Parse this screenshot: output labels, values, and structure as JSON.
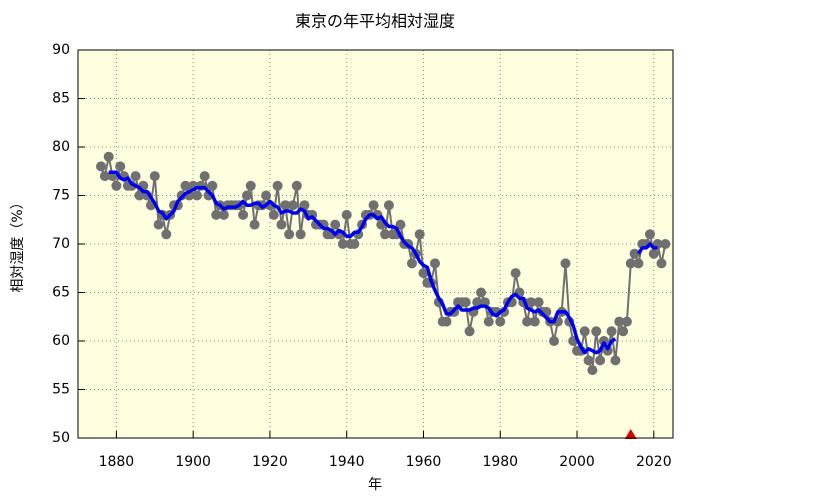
{
  "chart_data": {
    "type": "line",
    "title": "東京の年平均相対湿度",
    "xlabel": "年",
    "ylabel": "相対湿度（%）",
    "x": [
      1876,
      1877,
      1878,
      1879,
      1880,
      1881,
      1882,
      1883,
      1884,
      1885,
      1886,
      1887,
      1888,
      1889,
      1890,
      1891,
      1892,
      1893,
      1894,
      1895,
      1896,
      1897,
      1898,
      1899,
      1900,
      1901,
      1902,
      1903,
      1904,
      1905,
      1906,
      1907,
      1908,
      1909,
      1910,
      1911,
      1912,
      1913,
      1914,
      1915,
      1916,
      1917,
      1918,
      1919,
      1920,
      1921,
      1922,
      1923,
      1924,
      1925,
      1926,
      1927,
      1928,
      1929,
      1930,
      1931,
      1932,
      1933,
      1934,
      1935,
      1936,
      1937,
      1938,
      1939,
      1940,
      1941,
      1942,
      1943,
      1944,
      1945,
      1946,
      1947,
      1948,
      1949,
      1950,
      1951,
      1952,
      1953,
      1954,
      1955,
      1956,
      1957,
      1958,
      1959,
      1960,
      1961,
      1962,
      1963,
      1964,
      1965,
      1966,
      1967,
      1968,
      1969,
      1970,
      1971,
      1972,
      1973,
      1974,
      1975,
      1976,
      1977,
      1978,
      1979,
      1980,
      1981,
      1982,
      1983,
      1984,
      1985,
      1986,
      1987,
      1988,
      1989,
      1990,
      1991,
      1992,
      1993,
      1994,
      1995,
      1996,
      1997,
      1998,
      1999,
      2000,
      2001,
      2002,
      2003,
      2004,
      2005,
      2006,
      2007,
      2008,
      2009,
      2010,
      2011,
      2012,
      2013,
      2014,
      2015,
      2016,
      2017,
      2018,
      2019,
      2020,
      2021,
      2022,
      2023
    ],
    "series": [
      {
        "color": "#707070",
        "markers": true,
        "line_width": 2,
        "values": [
          78,
          77,
          79,
          77,
          76,
          78,
          77,
          76,
          76,
          77,
          75,
          76,
          75,
          74,
          77,
          72,
          73,
          71,
          73,
          74,
          74,
          75,
          76,
          75,
          76,
          75,
          76,
          77,
          75,
          76,
          73,
          74,
          73,
          74,
          74,
          74,
          74,
          73,
          75,
          76,
          72,
          74,
          74,
          75,
          74,
          73,
          76,
          72,
          74,
          71,
          74,
          76,
          71,
          74,
          73,
          73,
          72,
          72,
          72,
          71,
          71,
          72,
          71,
          70,
          73,
          70,
          70,
          71,
          72,
          73,
          73,
          74,
          73,
          72,
          71,
          74,
          71,
          71,
          72,
          70,
          70,
          68,
          69,
          71,
          67,
          66,
          66,
          68,
          64,
          62,
          62,
          63,
          63,
          64,
          64,
          64,
          61,
          63,
          64,
          65,
          64,
          62,
          63,
          63,
          62,
          63,
          64,
          64,
          67,
          65,
          64,
          62,
          64,
          62,
          64,
          63,
          63,
          62,
          60,
          62,
          63,
          68,
          62,
          60,
          59,
          59,
          61,
          58,
          57,
          61,
          58,
          60,
          59,
          61,
          58,
          62,
          61,
          62,
          68,
          69,
          68,
          70,
          70,
          71,
          69,
          70,
          68,
          70
        ]
      },
      {
        "color": "#0000ee",
        "markers": false,
        "line_width": 3.5,
        "values": [
          null,
          null,
          77.4,
          77.4,
          77.4,
          76.8,
          76.6,
          76.8,
          76.2,
          76.0,
          75.8,
          75.4,
          75.4,
          74.8,
          74.2,
          73.4,
          73.2,
          72.6,
          73.0,
          73.4,
          74.4,
          74.8,
          75.2,
          75.4,
          75.6,
          75.8,
          75.8,
          75.8,
          75.4,
          75.0,
          74.2,
          74.0,
          73.6,
          73.8,
          73.8,
          73.8,
          74.0,
          74.4,
          74.0,
          74.0,
          74.2,
          74.2,
          73.8,
          74.0,
          74.4,
          74.0,
          73.8,
          73.2,
          73.4,
          73.4,
          73.2,
          73.2,
          73.6,
          73.4,
          72.6,
          72.8,
          72.4,
          72.0,
          71.6,
          71.6,
          71.4,
          71.0,
          71.4,
          71.2,
          70.8,
          70.8,
          71.2,
          71.2,
          71.8,
          72.6,
          73.0,
          73.0,
          72.6,
          72.8,
          72.2,
          71.8,
          71.8,
          71.6,
          70.8,
          70.2,
          69.8,
          69.6,
          69.0,
          68.2,
          67.8,
          67.6,
          66.2,
          65.2,
          64.4,
          63.8,
          62.8,
          62.8,
          63.2,
          63.6,
          63.2,
          63.2,
          63.2,
          63.4,
          63.4,
          63.6,
          63.6,
          63.4,
          62.8,
          62.6,
          63.0,
          63.2,
          64.0,
          64.6,
          64.8,
          64.4,
          64.4,
          63.4,
          63.2,
          63.0,
          63.2,
          62.8,
          62.4,
          62.0,
          62.0,
          63.0,
          63.0,
          63.0,
          62.4,
          61.6,
          60.2,
          59.4,
          58.8,
          59.2,
          59.0,
          58.8,
          59.0,
          59.8,
          59.2,
          60.0,
          60.2,
          null,
          null,
          null,
          null,
          null,
          69.0,
          69.6,
          69.6,
          70.0,
          69.6,
          69.6,
          null,
          null
        ]
      }
    ],
    "marker": {
      "x": 2014,
      "y": 50,
      "color": "#dd0000",
      "shape": "triangle"
    },
    "xlim": [
      1870,
      2025
    ],
    "xticks": [
      1880,
      1900,
      1920,
      1940,
      1960,
      1980,
      2000,
      2020
    ],
    "ylim": [
      50,
      90
    ],
    "yticks": [
      50,
      55,
      60,
      65,
      70,
      75,
      80,
      85,
      90
    ],
    "grid": true,
    "background": "#ffffe0"
  }
}
